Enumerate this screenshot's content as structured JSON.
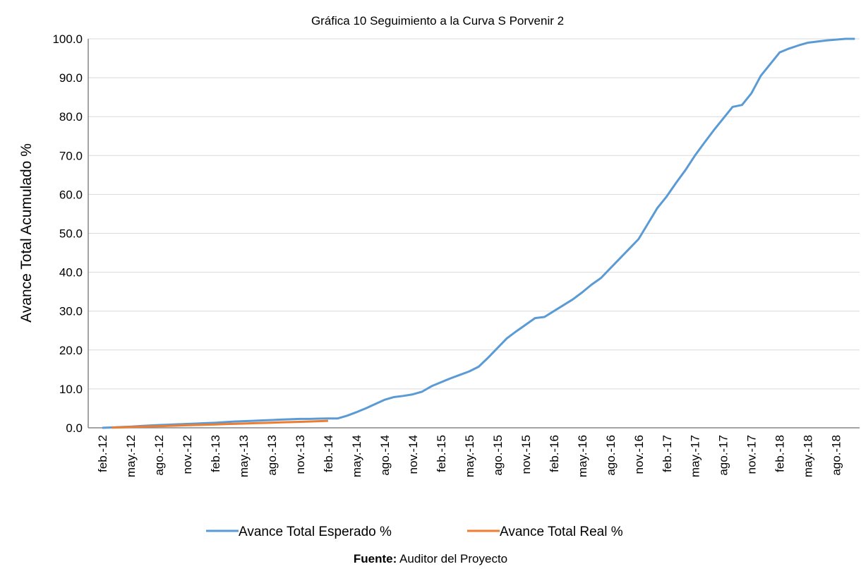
{
  "chart_data": {
    "type": "line",
    "title": "Gráfica 10 Seguimiento a la Curva S Porvenir 2",
    "y_label": "Avance Total Acumulado %",
    "categories": [
      null,
      "feb.-12",
      null,
      null,
      "may.-12",
      null,
      null,
      "ago.-12",
      null,
      null,
      "nov.-12",
      null,
      null,
      "feb.-13",
      null,
      null,
      "may.-13",
      null,
      null,
      "ago.-13",
      null,
      null,
      "nov.-13",
      null,
      null,
      "feb.-14",
      null,
      null,
      "may.-14",
      null,
      null,
      "ago.-14",
      null,
      null,
      "nov.-14",
      null,
      null,
      "feb.-15",
      null,
      null,
      "may.-15",
      null,
      null,
      "ago.-15",
      null,
      null,
      "nov.-15",
      null,
      null,
      "feb.-16",
      null,
      null,
      "may.-16",
      null,
      null,
      "ago.-16",
      null,
      null,
      "nov.-16",
      null,
      null,
      "feb.-17",
      null,
      null,
      "may.-17",
      null,
      null,
      "ago.-17",
      null,
      null,
      "nov.-17",
      null,
      null,
      "feb.-18",
      null,
      null,
      "may.-18",
      null,
      null,
      "ago.-18",
      null,
      null
    ],
    "series": [
      {
        "name": "Avance Total Esperado %",
        "color": "#5b9bd5",
        "values": [
          null,
          0,
          0.1,
          0.2,
          0.3,
          0.45,
          0.6,
          0.7,
          0.8,
          0.9,
          1.0,
          1.1,
          1.2,
          1.3,
          1.45,
          1.6,
          1.7,
          1.8,
          1.9,
          2.0,
          2.1,
          2.2,
          2.3,
          2.3,
          2.35,
          2.4,
          2.4,
          3.1,
          4.0,
          5.0,
          6.1,
          7.2,
          7.9,
          8.2,
          8.6,
          9.3,
          10.7,
          11.7,
          12.7,
          13.6,
          14.5,
          15.7,
          18.0,
          20.5,
          23.0,
          24.8,
          26.5,
          28.2,
          28.5,
          30,
          31.5,
          33,
          34.8,
          36.8,
          38.5,
          41,
          43.5,
          46,
          48.5,
          52.5,
          56.5,
          59.5,
          63,
          66.3,
          70,
          73.3,
          76.5,
          79.5,
          82.5,
          83,
          86,
          90.5,
          93.5,
          96.5,
          97.5,
          98.3,
          99,
          99.3,
          99.6,
          99.8,
          100,
          100
        ]
      },
      {
        "name": "Avance Total Real %",
        "color": "#ed7d31",
        "values": [
          null,
          null,
          0.05,
          0.12,
          0.2,
          0.27,
          0.35,
          0.42,
          0.5,
          0.57,
          0.65,
          0.72,
          0.8,
          0.87,
          0.95,
          1.02,
          1.1,
          1.17,
          1.25,
          1.32,
          1.4,
          1.47,
          1.55,
          1.62,
          1.7,
          1.8,
          null,
          null,
          null,
          null,
          null,
          null,
          null,
          null,
          null,
          null,
          null,
          null,
          null,
          null,
          null,
          null,
          null,
          null,
          null,
          null,
          null,
          null,
          null,
          null,
          null,
          null,
          null,
          null,
          null,
          null,
          null,
          null,
          null,
          null,
          null,
          null,
          null,
          null,
          null,
          null,
          null,
          null,
          null,
          null,
          null,
          null,
          null,
          null,
          null,
          null,
          null,
          null,
          null,
          null,
          null,
          null
        ]
      }
    ],
    "ylim": [
      0,
      100
    ],
    "yticks": [
      {
        "value": 0,
        "label": "0.0"
      },
      {
        "value": 10,
        "label": "10.0"
      },
      {
        "value": 20,
        "label": "20.0"
      },
      {
        "value": 30,
        "label": "30.0"
      },
      {
        "value": 40,
        "label": "40.0"
      },
      {
        "value": 50,
        "label": "50.0"
      },
      {
        "value": 60,
        "label": "60.0"
      },
      {
        "value": 70,
        "label": "70.0"
      },
      {
        "value": 80,
        "label": "80.0"
      },
      {
        "value": 90,
        "label": "90.0"
      },
      {
        "value": 100,
        "label": "100.0"
      }
    ],
    "grid": true,
    "legend": "bottom",
    "source_label": "Fuente:",
    "source": "Auditor del Proyecto"
  }
}
